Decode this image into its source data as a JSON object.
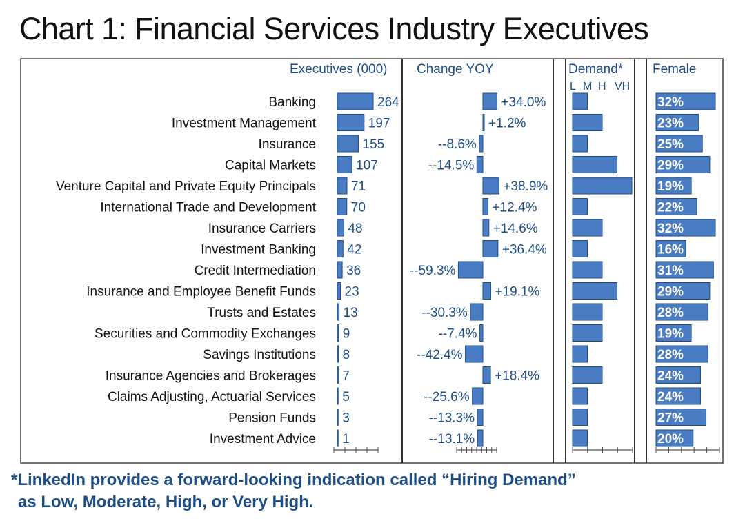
{
  "title": "Chart 1: Financial Services Industry Executives",
  "footnote": {
    "line1": "*LinkedIn provides a forward-looking indication called “Hiring Demand”",
    "line2": "as Low, Moderate, High, or Very High."
  },
  "colors": {
    "bar": "#4a7cc3",
    "bar_stroke": "#1e4e86",
    "text_blue": "#1e4e86",
    "panel_border": "#444444"
  },
  "chart_data": {
    "type": "bar",
    "categories": [
      "Banking",
      "Investment Management",
      "Insurance",
      "Capital Markets",
      "Venture Capital and Private Equity Principals",
      "International Trade and Development",
      "Insurance Carriers",
      "Investment Banking",
      "Credit Intermediation",
      "Insurance and Employee Benefit Funds",
      "Trusts and Estates",
      "Securities and Commodity Exchanges",
      "Savings Institutions",
      "Insurance Agencies and Brokerages",
      "Claims Adjusting, Actuarial Services",
      "Pension Funds",
      "Investment Advice"
    ],
    "executives": {
      "header": "Executives (000)",
      "values": [
        264,
        197,
        155,
        107,
        71,
        70,
        48,
        42,
        36,
        23,
        13,
        9,
        8,
        7,
        5,
        3,
        1
      ],
      "labels": [
        "264",
        "197",
        "155",
        "107",
        "71",
        "70",
        "48",
        "42",
        "36",
        "23",
        "13",
        "9",
        "8",
        "7",
        "5",
        "3",
        "1"
      ],
      "xlim": [
        0,
        300
      ]
    },
    "change_yoy": {
      "header": "Change YOY",
      "values": [
        34.0,
        1.2,
        -8.6,
        -14.5,
        38.9,
        12.4,
        14.6,
        36.4,
        -59.3,
        19.1,
        -30.3,
        -7.4,
        -42.4,
        18.4,
        -25.6,
        -13.3,
        -13.1
      ],
      "labels": [
        "+34.0%",
        "+1.2%",
        "--8.6%",
        "--14.5%",
        "+38.9%",
        "+12.4%",
        "+14.6%",
        "+36.4%",
        "--59.3%",
        "+19.1%",
        "--30.3%",
        "--7.4%",
        "--42.4%",
        "+18.4%",
        "--25.6%",
        "--13.3%",
        "--13.1%"
      ],
      "xlim": [
        -70,
        110
      ]
    },
    "demand": {
      "header": "Demand*",
      "levels": [
        "L",
        "M",
        "H",
        "VH"
      ],
      "values": [
        1,
        2,
        1,
        3,
        4,
        1,
        2,
        1,
        2,
        3,
        2,
        2,
        1,
        2,
        1,
        1,
        1
      ]
    },
    "female": {
      "header": "Female",
      "values": [
        32,
        23,
        25,
        29,
        19,
        22,
        32,
        16,
        31,
        29,
        28,
        19,
        28,
        24,
        24,
        27,
        20
      ],
      "labels": [
        "32%",
        "23%",
        "25%",
        "29%",
        "19%",
        "22%",
        "32%",
        "16%",
        "31%",
        "29%",
        "28%",
        "19%",
        "28%",
        "24%",
        "24%",
        "27%",
        "20%"
      ],
      "xlim": [
        0,
        35
      ]
    }
  }
}
